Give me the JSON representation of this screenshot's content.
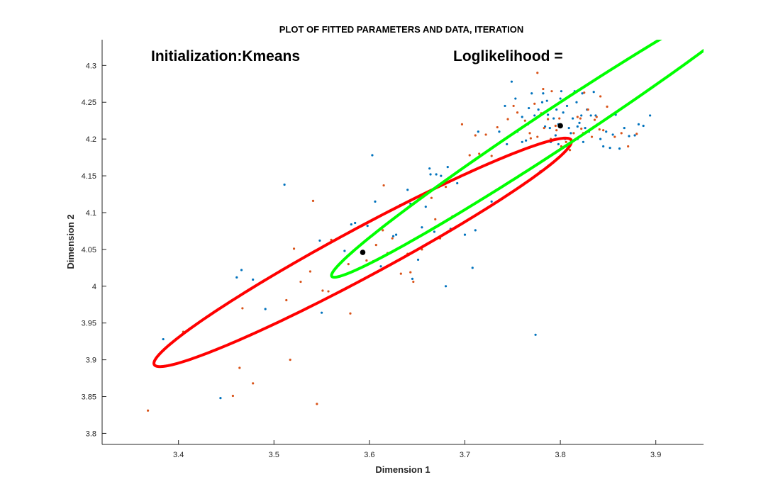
{
  "chart_data": {
    "type": "scatter",
    "title": "PLOT OF FITTED PARAMETERS AND DATA, ITERATION",
    "xlabel": "Dimension 1",
    "ylabel": "Dimension 2",
    "xlim": [
      3.32,
      3.95
    ],
    "ylim": [
      3.785,
      4.335
    ],
    "xticks": [
      3.4,
      3.5,
      3.6,
      3.7,
      3.8,
      3.9
    ],
    "xtick_labels": [
      "3.4",
      "3.5",
      "3.6",
      "3.7",
      "3.8",
      "3.9"
    ],
    "yticks": [
      3.8,
      3.85,
      3.9,
      3.95,
      4.0,
      4.05,
      4.1,
      4.15,
      4.2,
      4.25,
      4.3
    ],
    "ytick_labels": [
      "3.8",
      "3.85",
      "3.9",
      "3.95",
      "4",
      "4.05",
      "4.1",
      "4.15",
      "4.2",
      "4.25",
      "4.3"
    ],
    "grid": false,
    "legend": "none",
    "annotations": [
      {
        "text": "Initialization:Kmeans",
        "x": 3.36,
        "y": 4.306
      },
      {
        "text": "Loglikelihood =",
        "x": 3.675,
        "y": 4.306
      }
    ],
    "series": [
      {
        "kind": "points",
        "color": "#0072BD",
        "points": [
          [
            3.384,
            3.928
          ],
          [
            3.444,
            3.848
          ],
          [
            3.461,
            4.012
          ],
          [
            3.466,
            4.022
          ],
          [
            3.478,
            4.009
          ],
          [
            3.491,
            3.969
          ],
          [
            3.511,
            4.138
          ],
          [
            3.548,
            4.062
          ],
          [
            3.55,
            3.964
          ],
          [
            3.574,
            4.048
          ],
          [
            3.581,
            4.084
          ],
          [
            3.585,
            4.086
          ],
          [
            3.595,
            4.01
          ],
          [
            3.598,
            4.082
          ],
          [
            3.603,
            4.178
          ],
          [
            3.606,
            4.115
          ],
          [
            3.612,
            4.027
          ],
          [
            3.625,
            4.068
          ],
          [
            3.628,
            4.07
          ],
          [
            3.632,
            4.11
          ],
          [
            3.64,
            4.131
          ],
          [
            3.643,
            4.112
          ],
          [
            3.645,
            4.01
          ],
          [
            3.651,
            4.036
          ],
          [
            3.655,
            4.08
          ],
          [
            3.659,
            4.108
          ],
          [
            3.663,
            4.16
          ],
          [
            3.664,
            4.152
          ],
          [
            3.668,
            4.074
          ],
          [
            3.67,
            4.152
          ],
          [
            3.675,
            4.15
          ],
          [
            3.68,
            4.0
          ],
          [
            3.682,
            4.162
          ],
          [
            3.685,
            4.078
          ],
          [
            3.692,
            4.14
          ],
          [
            3.7,
            4.07
          ],
          [
            3.708,
            4.025
          ],
          [
            3.711,
            4.076
          ],
          [
            3.714,
            4.21
          ],
          [
            3.728,
            4.115
          ],
          [
            3.736,
            4.21
          ],
          [
            3.742,
            4.245
          ],
          [
            3.744,
            4.193
          ],
          [
            3.749,
            4.278
          ],
          [
            3.753,
            4.255
          ],
          [
            3.755,
            4.21
          ],
          [
            3.76,
            4.196
          ],
          [
            3.764,
            4.198
          ],
          [
            3.766,
            4.22
          ],
          [
            3.767,
            4.242
          ],
          [
            3.77,
            4.262
          ],
          [
            3.773,
            4.232
          ],
          [
            3.774,
            3.934
          ],
          [
            3.777,
            4.24
          ],
          [
            3.779,
            4.156
          ],
          [
            3.781,
            4.25
          ],
          [
            3.782,
            4.262
          ],
          [
            3.784,
            4.217
          ],
          [
            3.786,
            4.252
          ],
          [
            3.787,
            4.233
          ],
          [
            3.789,
            4.215
          ],
          [
            3.79,
            4.196
          ],
          [
            3.793,
            4.228
          ],
          [
            3.795,
            4.205
          ],
          [
            3.796,
            4.24
          ],
          [
            3.798,
            4.193
          ],
          [
            3.8,
            4.255
          ],
          [
            3.801,
            4.265
          ],
          [
            3.803,
            4.236
          ],
          [
            3.805,
            4.2
          ],
          [
            3.807,
            4.245
          ],
          [
            3.809,
            4.215
          ],
          [
            3.811,
            4.208
          ],
          [
            3.813,
            4.228
          ],
          [
            3.815,
            4.265
          ],
          [
            3.817,
            4.25
          ],
          [
            3.818,
            4.2
          ],
          [
            3.82,
            4.222
          ],
          [
            3.822,
            4.232
          ],
          [
            3.823,
            4.262
          ],
          [
            3.824,
            4.196
          ],
          [
            3.826,
            4.215
          ],
          [
            3.828,
            4.24
          ],
          [
            3.83,
            4.21
          ],
          [
            3.832,
            4.232
          ],
          [
            3.835,
            4.264
          ],
          [
            3.837,
            4.232
          ],
          [
            3.839,
            4.22
          ],
          [
            3.842,
            4.2
          ],
          [
            3.845,
            4.19
          ],
          [
            3.848,
            4.21
          ],
          [
            3.852,
            4.188
          ],
          [
            3.855,
            4.206
          ],
          [
            3.858,
            4.233
          ],
          [
            3.862,
            4.187
          ],
          [
            3.867,
            4.215
          ],
          [
            3.872,
            4.204
          ],
          [
            3.878,
            4.205
          ],
          [
            3.882,
            4.22
          ],
          [
            3.887,
            4.218
          ],
          [
            3.894,
            4.232
          ],
          [
            3.76,
            4.23
          ],
          [
            3.798,
            4.22
          ],
          [
            3.818,
            4.217
          ],
          [
            3.806,
            4.19
          ]
        ]
      },
      {
        "kind": "points",
        "color": "#D95319",
        "points": [
          [
            3.368,
            3.831
          ],
          [
            3.405,
            3.938
          ],
          [
            3.457,
            3.851
          ],
          [
            3.464,
            3.889
          ],
          [
            3.467,
            3.97
          ],
          [
            3.478,
            3.868
          ],
          [
            3.513,
            3.981
          ],
          [
            3.517,
            3.9
          ],
          [
            3.521,
            4.051
          ],
          [
            3.528,
            4.006
          ],
          [
            3.538,
            4.02
          ],
          [
            3.541,
            4.116
          ],
          [
            3.545,
            3.84
          ],
          [
            3.551,
            3.994
          ],
          [
            3.557,
            3.993
          ],
          [
            3.56,
            4.063
          ],
          [
            3.578,
            4.03
          ],
          [
            3.58,
            3.963
          ],
          [
            3.597,
            4.035
          ],
          [
            3.604,
            4.034
          ],
          [
            3.607,
            4.056
          ],
          [
            3.614,
            4.076
          ],
          [
            3.615,
            4.137
          ],
          [
            3.619,
            4.045
          ],
          [
            3.624,
            4.065
          ],
          [
            3.633,
            4.017
          ],
          [
            3.64,
            4.044
          ],
          [
            3.643,
            4.019
          ],
          [
            3.646,
            4.006
          ],
          [
            3.655,
            4.05
          ],
          [
            3.663,
            4.128
          ],
          [
            3.665,
            4.12
          ],
          [
            3.669,
            4.091
          ],
          [
            3.674,
            4.065
          ],
          [
            3.678,
            4.14
          ],
          [
            3.68,
            4.135
          ],
          [
            3.687,
            4.095
          ],
          [
            3.697,
            4.22
          ],
          [
            3.705,
            4.178
          ],
          [
            3.711,
            4.205
          ],
          [
            3.715,
            4.18
          ],
          [
            3.722,
            4.206
          ],
          [
            3.728,
            4.177
          ],
          [
            3.734,
            4.216
          ],
          [
            3.743,
            4.139
          ],
          [
            3.745,
            4.227
          ],
          [
            3.751,
            4.245
          ],
          [
            3.755,
            4.236
          ],
          [
            3.763,
            4.225
          ],
          [
            3.769,
            4.201
          ],
          [
            3.773,
            4.248
          ],
          [
            3.776,
            4.29
          ],
          [
            3.78,
            4.235
          ],
          [
            3.782,
            4.268
          ],
          [
            3.787,
            4.227
          ],
          [
            3.791,
            4.265
          ],
          [
            3.796,
            4.212
          ],
          [
            3.799,
            4.228
          ],
          [
            3.801,
            4.19
          ],
          [
            3.806,
            4.196
          ],
          [
            3.81,
            4.185
          ],
          [
            3.814,
            4.208
          ],
          [
            3.818,
            4.23
          ],
          [
            3.822,
            4.214
          ],
          [
            3.825,
            4.263
          ],
          [
            3.829,
            4.24
          ],
          [
            3.833,
            4.203
          ],
          [
            3.838,
            4.23
          ],
          [
            3.841,
            4.213
          ],
          [
            3.842,
            4.258
          ],
          [
            3.845,
            4.212
          ],
          [
            3.849,
            4.244
          ],
          [
            3.857,
            4.203
          ],
          [
            3.864,
            4.208
          ],
          [
            3.871,
            4.19
          ],
          [
            3.88,
            4.207
          ],
          [
            3.81,
            4.259
          ],
          [
            3.795,
            4.218
          ],
          [
            3.783,
            4.215
          ],
          [
            3.768,
            4.208
          ],
          [
            3.821,
            4.228
          ],
          [
            3.836,
            4.226
          ],
          [
            3.776,
            4.203
          ],
          [
            3.824,
            4.208
          ],
          [
            3.79,
            4.2
          ]
        ]
      },
      {
        "kind": "ellipse",
        "color": "#FF0000",
        "center": [
          3.593,
          4.046
        ],
        "a": 0.2665,
        "b": 0.0304,
        "angle_deg": 35.1,
        "marker_color": "#000000"
      },
      {
        "kind": "ellipse",
        "color": "#00FF00",
        "center": [
          3.8,
          4.218
        ],
        "a": 0.315,
        "b": 0.0244,
        "angle_deg": 40.6,
        "marker_color": "#000000"
      }
    ]
  }
}
